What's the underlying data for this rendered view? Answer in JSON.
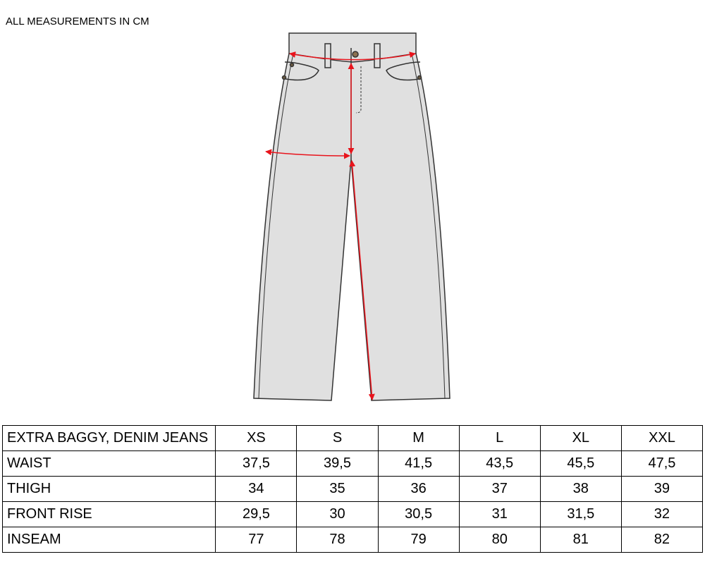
{
  "note": "ALL MEASUREMENTS IN CM",
  "illustration": {
    "icon": "jeans-flat-sketch-icon",
    "fill": "#e0e0e0",
    "measure_color": "#e8141c"
  },
  "table": {
    "header": [
      "EXTRA BAGGY, DENIM JEANS",
      "XS",
      "S",
      "M",
      "L",
      "XL",
      "XXL"
    ],
    "rows": [
      [
        "WAIST",
        "37,5",
        "39,5",
        "41,5",
        "43,5",
        "45,5",
        "47,5"
      ],
      [
        "THIGH",
        "34",
        "35",
        "36",
        "37",
        "38",
        "39"
      ],
      [
        "FRONT RISE",
        "29,5",
        "30",
        "30,5",
        "31",
        "31,5",
        "32"
      ],
      [
        "INSEAM",
        "77",
        "78",
        "79",
        "80",
        "81",
        "82"
      ]
    ]
  }
}
